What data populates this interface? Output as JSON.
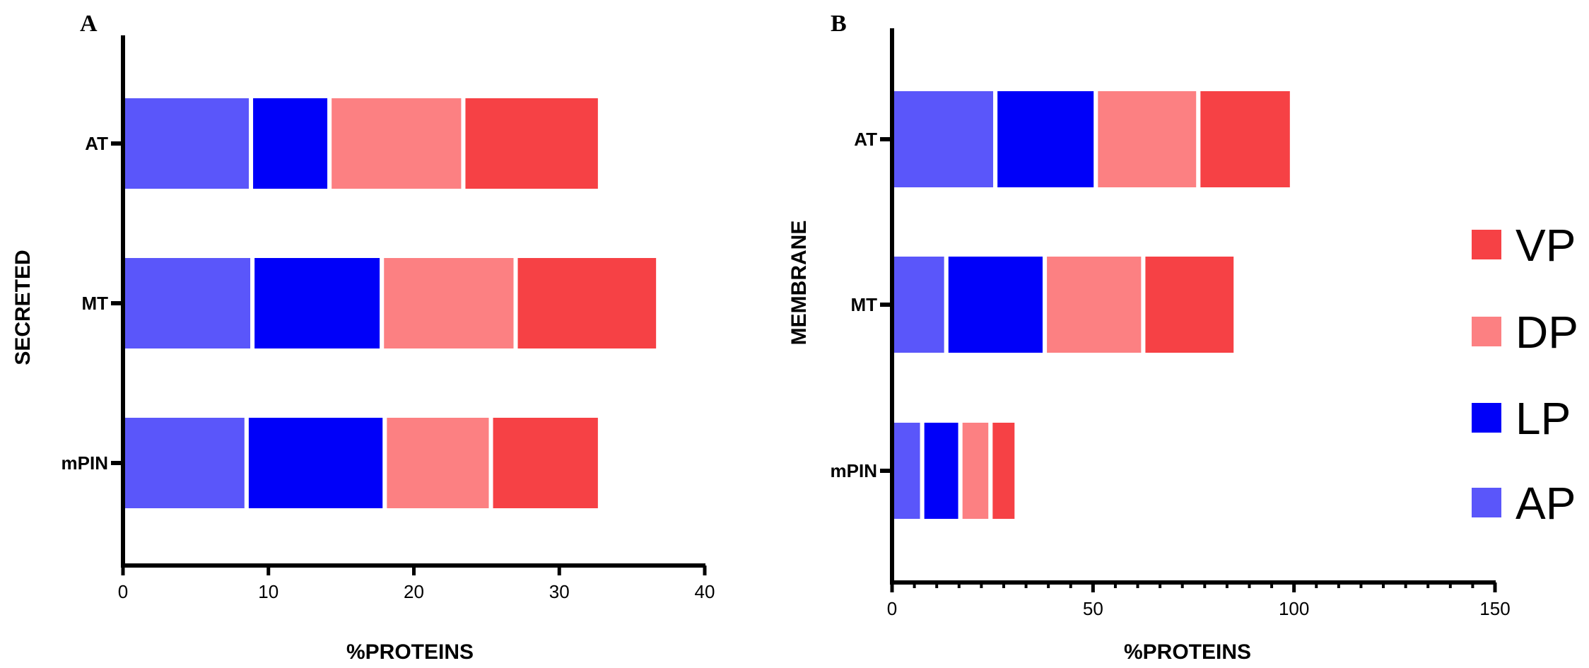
{
  "legend": [
    {
      "label": "VP",
      "color": "#f64145"
    },
    {
      "label": "DP",
      "color": "#fc8082"
    },
    {
      "label": "LP",
      "color": "#0000f9"
    },
    {
      "label": "AP",
      "color": "#5a56fa"
    }
  ],
  "chart_data": [
    {
      "type": "bar",
      "orientation": "horizontal",
      "stacked": true,
      "panel_label": "A",
      "categories": [
        "AT",
        "MT",
        "mPIN"
      ],
      "series": [
        {
          "name": "AP",
          "color": "#5a56fa",
          "values": [
            8.8,
            8.9,
            8.5
          ]
        },
        {
          "name": "LP",
          "color": "#0000f9",
          "values": [
            5.4,
            8.9,
            9.5
          ]
        },
        {
          "name": "DP",
          "color": "#fc8082",
          "values": [
            9.2,
            9.2,
            7.3
          ]
        },
        {
          "name": "VP",
          "color": "#f64145",
          "values": [
            9.4,
            9.8,
            7.5
          ]
        }
      ],
      "xlabel": "%PROTEINS",
      "ylabel": "SECRETED",
      "xlim": [
        0,
        40
      ],
      "xticks": [
        0,
        10,
        20,
        30,
        40
      ]
    },
    {
      "type": "bar",
      "orientation": "horizontal",
      "stacked": true,
      "panel_label": "B",
      "categories": [
        "AT",
        "MT",
        "mPIN"
      ],
      "series": [
        {
          "name": "AP",
          "color": "#5a56fa",
          "values": [
            25.7,
            13.5,
            7.5
          ]
        },
        {
          "name": "LP",
          "color": "#0000f9",
          "values": [
            25,
            24.5,
            9.5
          ]
        },
        {
          "name": "DP",
          "color": "#fc8082",
          "values": [
            25.5,
            24.5,
            7.5
          ]
        },
        {
          "name": "VP",
          "color": "#f64145",
          "values": [
            23.3,
            23,
            6.5
          ]
        }
      ],
      "xlabel": "%PROTEINS",
      "ylabel": "MEMBRANE",
      "xlim": [
        0,
        150
      ],
      "xticks": [
        0,
        50,
        100,
        150
      ]
    }
  ]
}
